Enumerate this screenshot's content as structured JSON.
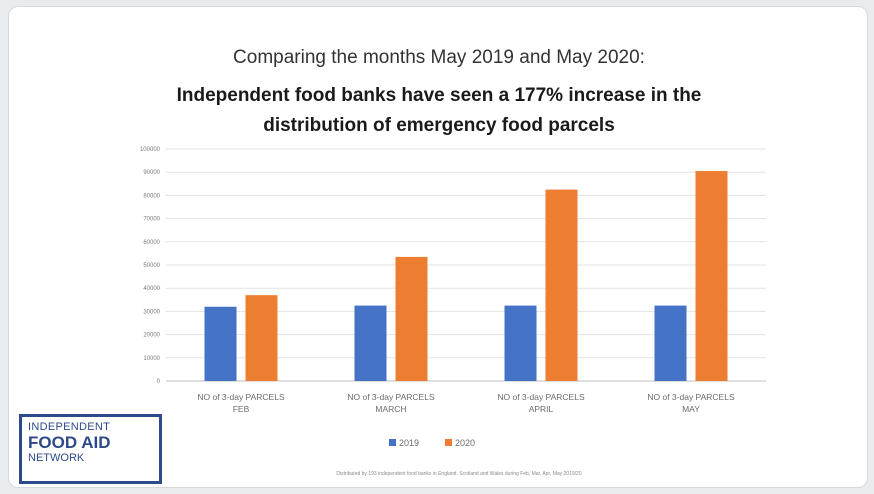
{
  "header": {
    "title_line1": "Comparing the months May 2019 and May 2020:",
    "title_line2": "Independent food banks have seen a 177% increase in the distribution of emergency food parcels"
  },
  "logo": {
    "line1": "INDEPENDENT",
    "line2": "FOOD AID",
    "line3": "NETWORK"
  },
  "footnote": "Distributed by 193 independent food banks in England, Scotland and Wales during Feb, Mar, Apr, May 2019/20",
  "chart_data": {
    "type": "bar",
    "categories": [
      [
        "NO of 3-day PARCELS",
        "FEB"
      ],
      [
        "NO of 3-day PARCELS",
        "MARCH"
      ],
      [
        "NO of 3-day PARCELS",
        "APRIL"
      ],
      [
        "NO of 3-day PARCELS",
        "MAY"
      ]
    ],
    "series": [
      {
        "name": "2019",
        "color": "#4472c4",
        "values": [
          32000,
          32500,
          32500,
          32500
        ]
      },
      {
        "name": "2020",
        "color": "#ed7d31",
        "values": [
          37000,
          53500,
          82500,
          90500
        ]
      }
    ],
    "y_ticks": [
      "0",
      "10000",
      "20000",
      "30000",
      "40000",
      "50000",
      "60000",
      "70000",
      "80000",
      "90000",
      "100000"
    ],
    "ylim": [
      0,
      100000
    ],
    "grid": true,
    "legend_position": "bottom"
  }
}
